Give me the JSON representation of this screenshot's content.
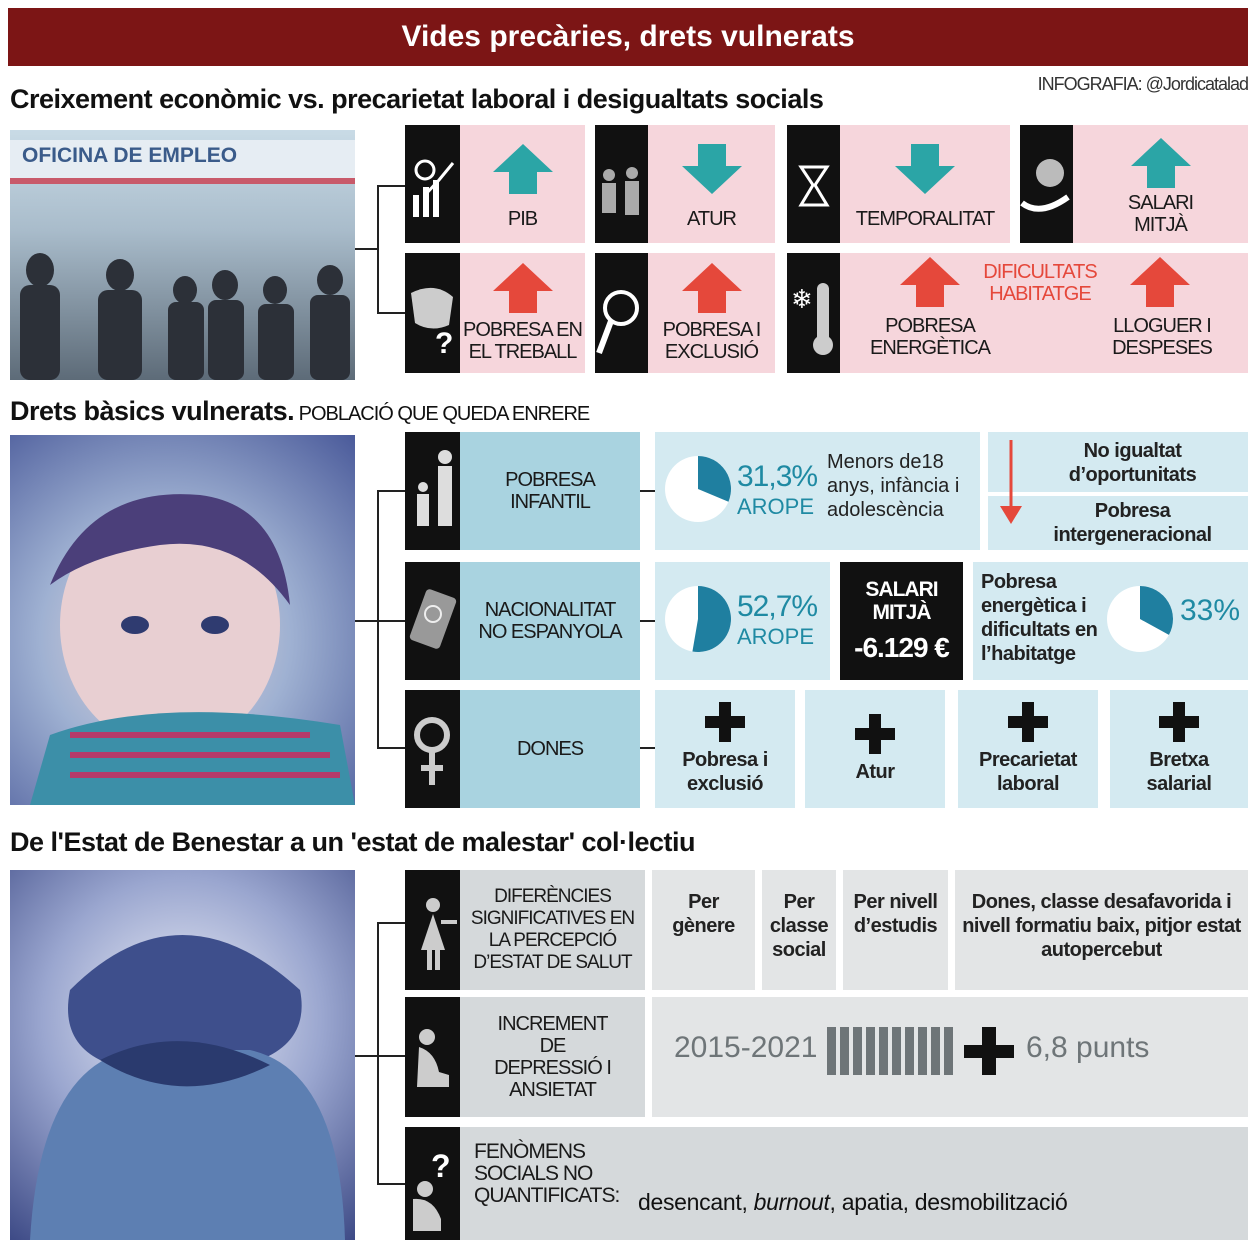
{
  "header": {
    "title": "Vides precàries, drets vulnerats",
    "credit": "INFOGRAFIA: @Jordicatalad"
  },
  "growth": {
    "title": "Creixement econòmic vs. precarietat laboral i desigualtats socials",
    "photo_sign": "OFICINA DE EMPLEO",
    "items": [
      "PIB",
      "ATUR",
      "TEMPORALITAT",
      "SALARI MITJÀ",
      "POBRESA EN EL TREBALL",
      "POBRESA I EXCLUSIÓ",
      "DIFICULTATS HABITATGE",
      "POBRESA ENERGÈTICA",
      "LLOGUER I DESPESES"
    ]
  },
  "rights": {
    "title": "Drets bàsics vulnerats.",
    "subtitle": "POBLACIÓ QUE QUEDA ENRERE",
    "child": {
      "label": "POBRESA INFANTIL",
      "value": 31.3,
      "value_label": "31,3%",
      "unit": "AROPE",
      "note": "Menors de18 anys, infància i adolescència",
      "consequences": [
        "No igualtat d’oportunitats",
        "Pobresa intergeneracional"
      ]
    },
    "foreign": {
      "label": "NACIONALITAT NO ESPANYOLA",
      "value": 52.7,
      "value_label": "52,7%",
      "unit": "AROPE",
      "salary_label": "SALARI MITJÀ",
      "salary_value": "-6.129 €",
      "energy_note": "Pobresa energètica i dificultats en l’habitatge",
      "energy_value": 33,
      "energy_value_label": "33%"
    },
    "women": {
      "label": "DONES",
      "items": [
        "Pobresa i exclusió",
        "Atur",
        "Precarietat laboral",
        "Bretxa salarial"
      ]
    }
  },
  "wellbeing": {
    "title": "De l'Estat de Benestar a un 'estat de malestar' col·lectiu",
    "health": {
      "label": "DIFERÈNCIES SIGNIFICATIVES EN LA PERCEPCIÓ D’ESTAT DE SALUT",
      "items": [
        "Per gènere",
        "Per classe social",
        "Per nivell d’estudis",
        "Dones, classe desafavorida i nivell formatiu baix, pitjor estat autopercebut"
      ]
    },
    "depression": {
      "label": "INCREMENT DE DEPRESSIÓ I ANSIETAT",
      "period": "2015-2021",
      "value_label": "6,8 punts"
    },
    "phenomena": {
      "label": "FENÒMENS SOCIALS NO QUANTIFICATS:",
      "items": [
        "desencant,",
        "burnout",
        ", apatia, desmobilització"
      ]
    }
  }
}
